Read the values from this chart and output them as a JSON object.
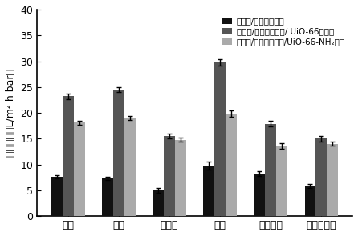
{
  "categories": [
    "甲醇",
    "乙醇",
    "已丙醇",
    "丙酮",
    "乙酸乙酯",
    "甲基甲酰胺"
  ],
  "series": [
    {
      "label": "多巴胺/葡萄糖纳滤膜",
      "color": "#111111",
      "values": [
        7.6,
        7.3,
        5.0,
        9.8,
        8.2,
        5.8
      ],
      "errors": [
        0.3,
        0.3,
        0.5,
        0.8,
        0.5,
        0.4
      ]
    },
    {
      "label": "多巴胺/葡萄糖纳滤膜/ UiO-66纳滤膜",
      "color": "#555555",
      "values": [
        23.2,
        24.5,
        15.5,
        29.8,
        17.9,
        15.0
      ],
      "errors": [
        0.6,
        0.5,
        0.5,
        0.6,
        0.5,
        0.5
      ]
    },
    {
      "label": "多巴胺/葡萄糖纳滤膜/UiO-66-NH₂滤膜",
      "color": "#aaaaaa",
      "values": [
        18.1,
        19.0,
        14.8,
        19.9,
        13.6,
        14.0
      ],
      "errors": [
        0.4,
        0.4,
        0.4,
        0.6,
        0.5,
        0.4
      ]
    }
  ],
  "ylabel": "滲透通量（L/m² h bar）",
  "ylim": [
    0,
    40
  ],
  "yticks": [
    0,
    5,
    10,
    15,
    20,
    25,
    30,
    35,
    40
  ],
  "bar_width": 0.22,
  "background_color": "#ffffff",
  "legend_fontsize": 7.5,
  "axis_fontsize": 9,
  "tick_fontsize": 9
}
